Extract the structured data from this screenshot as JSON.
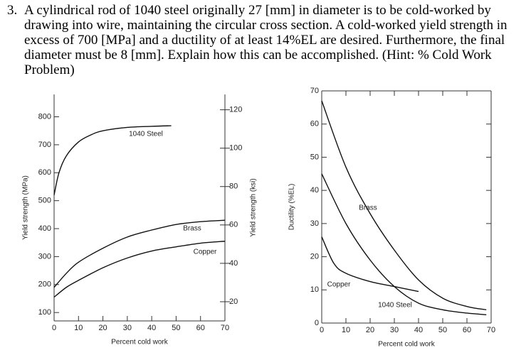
{
  "problem": {
    "number": "3.",
    "text": "A cylindrical rod of 1040 steel originally 27 [mm] in diameter is to be cold-worked by drawing into wire, maintaining the circular cross section. A cold-worked yield strength in excess of 700 [MPa] and a ductility of at least 14%EL are desired. Furthermore, the final diameter must be 8 [mm]. Explain how this can be accomplished. (Hint: % Cold Work Problem)"
  },
  "chart_data": [
    {
      "type": "line",
      "x_label": "Percent cold work",
      "y_label": "Yield strength (MPa)",
      "y2_label": "Yield strength (ksi)",
      "xlim": [
        0,
        70
      ],
      "xticks": [
        0,
        10,
        20,
        30,
        40,
        50,
        60,
        70
      ],
      "ylim": [
        70,
        880
      ],
      "yticks": [
        100,
        200,
        300,
        400,
        500,
        600,
        700,
        800
      ],
      "y2lim": [
        10,
        128
      ],
      "y2ticks": [
        20,
        40,
        60,
        80,
        100,
        120
      ],
      "series": [
        {
          "name": "1040 Steel",
          "color": "#111111",
          "x": [
            0,
            2,
            5,
            10,
            15,
            20,
            30,
            40,
            48
          ],
          "values": [
            520,
            600,
            660,
            710,
            735,
            750,
            762,
            766,
            768
          ]
        },
        {
          "name": "Brass",
          "color": "#111111",
          "x": [
            0,
            5,
            10,
            20,
            30,
            40,
            50,
            60,
            70
          ],
          "values": [
            190,
            240,
            280,
            330,
            370,
            395,
            415,
            425,
            430
          ]
        },
        {
          "name": "Copper",
          "color": "#111111",
          "x": [
            0,
            5,
            10,
            20,
            30,
            40,
            50,
            60,
            70
          ],
          "values": [
            155,
            190,
            215,
            260,
            295,
            320,
            335,
            348,
            355
          ]
        }
      ]
    },
    {
      "type": "line",
      "x_label": "Percent cold work",
      "y_label": "Ductility (%EL)",
      "xlim": [
        0,
        70
      ],
      "xticks": [
        0,
        10,
        20,
        30,
        40,
        50,
        60,
        70
      ],
      "ylim": [
        0,
        70
      ],
      "yticks": [
        0,
        10,
        20,
        30,
        40,
        50,
        60,
        70
      ],
      "series": [
        {
          "name": "Brass",
          "color": "#111111",
          "x": [
            0,
            10,
            20,
            30,
            40,
            50,
            60,
            68
          ],
          "values": [
            67,
            47,
            33,
            22,
            13,
            7.5,
            5,
            4
          ]
        },
        {
          "name": "Copper",
          "color": "#111111",
          "x": [
            0,
            10,
            20,
            30,
            40,
            50,
            60,
            68
          ],
          "values": [
            45,
            30,
            19,
            11,
            6,
            4,
            3,
            2.5
          ]
        },
        {
          "name": "1040 Steel",
          "color": "#111111",
          "x": [
            0,
            5,
            10,
            20,
            30,
            40
          ],
          "values": [
            26,
            18,
            15,
            12.5,
            11,
            9.5
          ]
        }
      ]
    }
  ]
}
